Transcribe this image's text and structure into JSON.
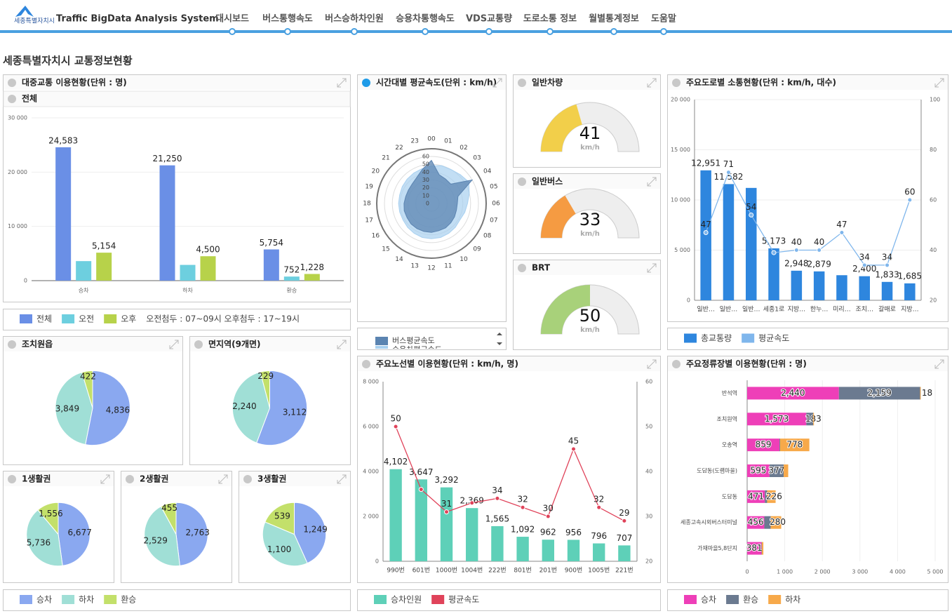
{
  "header": {
    "logo": "세종특별자치시",
    "system_name": "Traffic BigData Analysis System",
    "nav": [
      "대시보드",
      "버스통행속도",
      "버스승하차인원",
      "승용차통행속도",
      "VDS교통량",
      "도로소통 정보",
      "월별통계정보",
      "도움말"
    ]
  },
  "page_title": "세종특별자치시 교통정보현황",
  "chart_data": [
    {
      "type": "bar",
      "title": "대중교통 이용현황(단위 : 명)",
      "subtitle": "전체",
      "categories": [
        "승차",
        "하차",
        "환승"
      ],
      "series": [
        {
          "name": "전체",
          "color": "#6a8fe6",
          "values": [
            24583,
            21250,
            5754
          ],
          "value_labels": [
            "24,583",
            "21,250",
            "5,754"
          ]
        },
        {
          "name": "오전",
          "color": "#6dcfdf",
          "values": [
            3600,
            2900,
            752
          ],
          "value_labels": [
            null,
            null,
            "752"
          ]
        },
        {
          "name": "오후",
          "color": "#b7d24a",
          "values": [
            5154,
            4500,
            1228
          ],
          "value_labels": [
            "5,154",
            "4,500",
            "1,228"
          ]
        }
      ],
      "ylim": [
        0,
        30000
      ],
      "yticks": [
        0,
        {
          "value": 10000,
          "label": "10 000"
        },
        {
          "value": 20000,
          "label": "20 000"
        },
        {
          "value": 30000,
          "label": "30 000"
        }
      ],
      "grid": true,
      "note": "오전첨두 : 07~09시  오후첨두 : 17~19시"
    },
    {
      "type": "radar",
      "title": "시간대별 평균속도(단위 : km/h)",
      "categories": [
        "00",
        "01",
        "02",
        "03",
        "04",
        "05",
        "06",
        "07",
        "08",
        "09",
        "10",
        "11",
        "12",
        "13",
        "14",
        "15",
        "16",
        "17",
        "18",
        "19",
        "20",
        "21",
        "22",
        "23"
      ],
      "ylim": [
        0,
        60
      ],
      "yticks": [
        0,
        10,
        20,
        30,
        40,
        50,
        60
      ],
      "series": [
        {
          "name": "버스평균속도",
          "color": "#5b84b1",
          "values": [
            55,
            38,
            36,
            35,
            60,
            35,
            33,
            33,
            34,
            35,
            36,
            36,
            37,
            37,
            37,
            37,
            36,
            36,
            35,
            34,
            34,
            35,
            38,
            45
          ]
        },
        {
          "name": "승용차평균속도",
          "color": "#a8d0f0",
          "values": [
            48,
            50,
            50,
            52,
            55,
            50,
            46,
            44,
            42,
            43,
            44,
            45,
            45,
            45,
            44,
            43,
            42,
            42,
            42,
            42,
            43,
            44,
            45,
            46
          ]
        }
      ]
    },
    {
      "type": "gauge",
      "title": "일반차량",
      "value": 41,
      "unit": "km/h",
      "ylim": [
        0,
        100
      ],
      "color": "#f2cf4a"
    },
    {
      "type": "gauge",
      "title": "일반버스",
      "value": 33,
      "unit": "km/h",
      "ylim": [
        0,
        100
      ],
      "color": "#f59b42"
    },
    {
      "type": "gauge",
      "title": "BRT",
      "value": 50,
      "unit": "km/h",
      "ylim": [
        0,
        100
      ],
      "color": "#a8d17a"
    },
    {
      "type": "bar_line",
      "title": "주요도로별 소통현황(단위 : km/h, 대수)",
      "categories": [
        "일반…",
        "일반…",
        "일반…",
        "세종1로",
        "지방…",
        "한누…",
        "미리…",
        "조치…",
        "갈매로",
        "지방…"
      ],
      "series": [
        {
          "name": "총교통량",
          "color": "#2e86de",
          "type": "bar",
          "values": [
            12951,
            11582,
            11200,
            5173,
            2948,
            2879,
            2500,
            2400,
            1833,
            1685
          ],
          "value_labels": [
            "12,951",
            "11,582",
            null,
            "5,173",
            "2,948",
            "2,879",
            null,
            "2,400",
            "1,833",
            "1,685"
          ]
        },
        {
          "name": "평균속도",
          "color": "#7fb6ec",
          "type": "line",
          "axis": "y2",
          "values": [
            47,
            71,
            54,
            39,
            40,
            40,
            47,
            34,
            34,
            60
          ],
          "value_labels": [
            "47",
            "71",
            "54",
            null,
            "40",
            "40",
            "47",
            "34",
            "34",
            "60"
          ]
        }
      ],
      "ylim": [
        0,
        20000
      ],
      "yticks": [
        0,
        {
          "value": 5000,
          "label": "5 000"
        },
        {
          "value": 10000,
          "label": "10 000"
        },
        {
          "value": 15000,
          "label": "15 000"
        },
        {
          "value": 20000,
          "label": "20 000"
        }
      ],
      "y2lim": [
        20,
        100
      ],
      "y2ticks": [
        20,
        40,
        60,
        80,
        100
      ],
      "grid": true
    },
    {
      "type": "bar_line",
      "title": "주요노선별 이용현황(단위 : km/h, 명)",
      "categories": [
        "990번",
        "601번",
        "1000번",
        "1004번",
        "222번",
        "801번",
        "201번",
        "900번",
        "1005번",
        "221번"
      ],
      "series": [
        {
          "name": "승차인원",
          "color": "#5ed0b8",
          "type": "bar",
          "values": [
            4102,
            3647,
            3292,
            2369,
            1565,
            1092,
            962,
            956,
            796,
            707
          ],
          "value_labels": [
            "4,102",
            "3,647",
            "3,292",
            "2,369",
            "1,565",
            "1,092",
            "962",
            "956",
            "796",
            "707"
          ]
        },
        {
          "name": "평균속도",
          "color": "#e0435a",
          "type": "line",
          "axis": "y2",
          "values": [
            50,
            36,
            31,
            33,
            34,
            32,
            30,
            45,
            32,
            29
          ],
          "value_labels": [
            "50",
            null,
            "31",
            null,
            "34",
            "32",
            "30",
            "45",
            "32",
            "29"
          ]
        }
      ],
      "ylim": [
        0,
        8000
      ],
      "yticks": [
        0,
        {
          "value": 2000,
          "label": "2 000"
        },
        {
          "value": 4000,
          "label": "4 000"
        },
        {
          "value": 6000,
          "label": "6 000"
        },
        {
          "value": 8000,
          "label": "8 000"
        }
      ],
      "y2lim": [
        20,
        60
      ],
      "y2ticks": [
        20,
        30,
        40,
        50,
        60
      ],
      "grid": false
    },
    {
      "type": "stacked_hbar",
      "title": "주요정류장별 이용현황(단위 : 명)",
      "categories": [
        "반석역",
        "조치원역",
        "오송역",
        "도담동(도램마을)",
        "도담동",
        "세종고속시외버스터미널",
        "가재마을5,8단지"
      ],
      "series": [
        {
          "name": "승차",
          "color": "#ee3fb8",
          "values": [
            2440,
            1573,
            859,
            595,
            471,
            456,
            381
          ],
          "value_labels": [
            "2,440",
            "1,573",
            "859",
            "595",
            "471",
            "456",
            "381"
          ]
        },
        {
          "name": "환승",
          "color": "#6b7a90",
          "values": [
            2159,
            183,
            17,
            377,
            60,
            170,
            10
          ],
          "value_labels": [
            "2,159",
            "183",
            "17",
            "377",
            null,
            null,
            null
          ]
        },
        {
          "name": "하차",
          "color": "#f7a94a",
          "values": [
            18,
            20,
            778,
            120,
            226,
            280,
            40
          ],
          "value_labels": [
            "18",
            null,
            "778",
            null,
            "226",
            "280",
            null
          ]
        }
      ],
      "xlim": [
        0,
        5000
      ],
      "xticks": [
        0,
        {
          "value": 1000,
          "label": "1 000"
        },
        {
          "value": 2000,
          "label": "2 000"
        },
        {
          "value": 3000,
          "label": "3 000"
        },
        {
          "value": 4000,
          "label": "4 000"
        },
        {
          "value": 5000,
          "label": "5 000"
        }
      ],
      "grid": true
    },
    {
      "type": "pie",
      "title": "조치원읍",
      "values": [
        4836,
        3849,
        422
      ],
      "value_labels": [
        "4,836",
        "3,849",
        "422"
      ]
    },
    {
      "type": "pie",
      "title": "면지역(9개면)",
      "values": [
        3112,
        2240,
        229
      ],
      "value_labels": [
        "3,112",
        "2,240",
        "229"
      ]
    },
    {
      "type": "pie",
      "title": "1생활권",
      "values": [
        6677,
        5736,
        1556
      ],
      "value_labels": [
        "6,677",
        "5,736",
        "1,556"
      ]
    },
    {
      "type": "pie",
      "title": "2생활권",
      "values": [
        2763,
        2529,
        455
      ],
      "value_labels": [
        "2,763",
        "2,529",
        "455"
      ]
    },
    {
      "type": "pie",
      "title": "3생활권",
      "values": [
        1249,
        1100,
        539
      ],
      "value_labels": [
        "1,249",
        "1,100",
        "539"
      ]
    }
  ],
  "pie_legend": {
    "series": [
      {
        "name": "승차",
        "color": "#8aa8f0"
      },
      {
        "name": "하차",
        "color": "#a0dfd6"
      },
      {
        "name": "환승",
        "color": "#c3e06a"
      }
    ]
  }
}
